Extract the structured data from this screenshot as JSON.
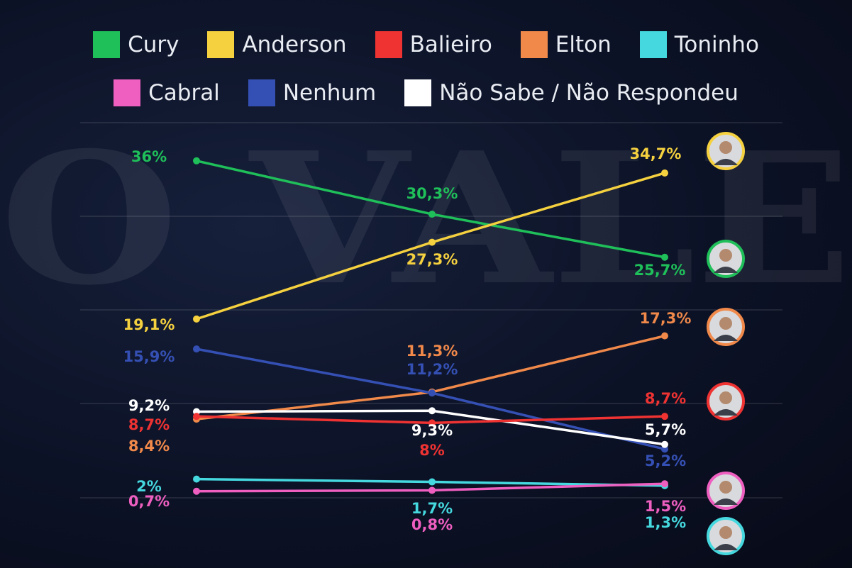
{
  "watermark": "O VALE",
  "chart_data": {
    "type": "line",
    "categories": [
      "",
      "",
      ""
    ],
    "series": [
      {
        "name": "Cury",
        "color": "#1fbf5a",
        "values": [
          36,
          30.3,
          25.7
        ],
        "labels": [
          "36%",
          "30,3%",
          "25,7%"
        ],
        "photo": true
      },
      {
        "name": "Anderson",
        "color": "#f5d13f",
        "values": [
          19.1,
          27.3,
          34.7
        ],
        "labels": [
          "19,1%",
          "27,3%",
          "34,7%"
        ],
        "photo": true
      },
      {
        "name": "Balieiro",
        "color": "#ef3232",
        "values": [
          8.7,
          8,
          8.7
        ],
        "labels": [
          "8,7%",
          "8%",
          "8,7%"
        ],
        "photo": true
      },
      {
        "name": "Elton",
        "color": "#f0894a",
        "values": [
          8.4,
          11.3,
          17.3
        ],
        "labels": [
          "8,4%",
          "11,3%",
          "17,3%"
        ],
        "photo": true
      },
      {
        "name": "Toninho",
        "color": "#45d8de",
        "values": [
          2,
          1.7,
          1.3
        ],
        "labels": [
          "2%",
          "1,7%",
          "1,3%"
        ],
        "photo": true
      },
      {
        "name": "Cabral",
        "color": "#ee5fc0",
        "values": [
          0.7,
          0.8,
          1.5
        ],
        "labels": [
          "0,7%",
          "0,8%",
          "1,5%"
        ],
        "photo": true
      },
      {
        "name": "Nenhum",
        "color": "#3550b4",
        "values": [
          15.9,
          11.2,
          5.2
        ],
        "labels": [
          "15,9%",
          "11,2%",
          "5,2%"
        ],
        "photo": false
      },
      {
        "name": "Não Sabe / Não Respondeu",
        "color": "#ffffff",
        "values": [
          9.2,
          9.3,
          5.7
        ],
        "labels": [
          "9,2%",
          "9,3%",
          "5,7%"
        ],
        "photo": false
      }
    ],
    "ylim": [
      0,
      40
    ],
    "grid": true,
    "legend": "top-center",
    "title": "",
    "xlabel": "",
    "ylabel": ""
  }
}
